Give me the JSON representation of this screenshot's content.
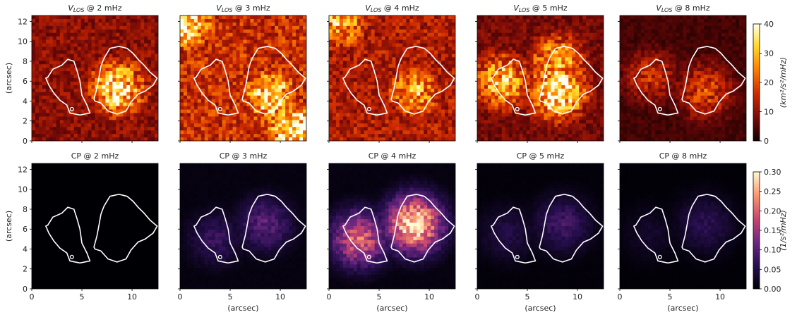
{
  "figure": {
    "rows": [
      {
        "quantity": "V_LOS",
        "titles": [
          {
            "main": "V",
            "sub": "LOS",
            "rest": " @ 2 mHz"
          },
          {
            "main": "V",
            "sub": "LOS",
            "rest": " @ 3 mHz"
          },
          {
            "main": "V",
            "sub": "LOS",
            "rest": " @ 4 mHz"
          },
          {
            "main": "V",
            "sub": "LOS",
            "rest": " @ 5 mHz"
          },
          {
            "main": "V",
            "sub": "LOS",
            "rest": " @ 8 mHz"
          }
        ],
        "colormap": "inferno-like (black-red-orange-yellow-white)",
        "colorbar": {
          "range": [
            0,
            40
          ],
          "ticks": [
            "0",
            "10",
            "20",
            "30",
            "40"
          ],
          "label": "(km²/s²/mHz)"
        }
      },
      {
        "quantity": "CP",
        "titles": [
          {
            "main": "CP @ 2 mHz"
          },
          {
            "main": "CP @ 3 mHz"
          },
          {
            "main": "CP @ 4 mHz"
          },
          {
            "main": "CP @ 5 mHz"
          },
          {
            "main": "CP @ 8 mHz"
          }
        ],
        "colormap": "magma-like (black-purple-orange-cream)",
        "colorbar": {
          "range": [
            0,
            0.3
          ],
          "ticks": [
            "0.00",
            "0.05",
            "0.10",
            "0.15",
            "0.20",
            "0.25",
            "0.30"
          ],
          "label": "(1/s²/mHz)"
        }
      }
    ],
    "axes": {
      "xlabel": "(arcsec)",
      "ylabel": "(arcsec)",
      "xticks": [
        "0",
        "5",
        "10"
      ],
      "yticks": [
        "0",
        "2",
        "4",
        "6",
        "8",
        "10",
        "12"
      ],
      "xlim": [
        0,
        12.6
      ],
      "ylim": [
        0,
        12.6
      ]
    },
    "contour_color": "#ffffff"
  },
  "chart_data": {
    "type": "heatmap",
    "xlabel": "(arcsec)",
    "ylabel": "(arcsec)",
    "xlim": [
      0,
      12.6
    ],
    "ylim": [
      0,
      12.6
    ],
    "panels": [
      {
        "row": "V_LOS",
        "frequency_mHz": 2,
        "bright_regions": [
          {
            "x": 8.5,
            "y": 5.3,
            "level": 35
          }
        ],
        "mean_level": 10
      },
      {
        "row": "V_LOS",
        "frequency_mHz": 3,
        "bright_regions": [
          {
            "x": 11.5,
            "y": 1.0,
            "level": 40
          },
          {
            "x": 0.5,
            "y": 12.0,
            "level": 38
          },
          {
            "x": 9.0,
            "y": 4.5,
            "level": 35
          }
        ],
        "mean_level": 16
      },
      {
        "row": "V_LOS",
        "frequency_mHz": 4,
        "bright_regions": [
          {
            "x": 1.0,
            "y": 12.0,
            "level": 30
          },
          {
            "x": 8.5,
            "y": 5.0,
            "level": 28
          }
        ],
        "mean_level": 13
      },
      {
        "row": "V_LOS",
        "frequency_mHz": 5,
        "bright_regions": [
          {
            "x": 8.0,
            "y": 5.0,
            "level": 38
          },
          {
            "x": 2.5,
            "y": 6.0,
            "level": 30
          },
          {
            "x": 8.0,
            "y": 8.0,
            "level": 28
          }
        ],
        "mean_level": 8
      },
      {
        "row": "V_LOS",
        "frequency_mHz": 8,
        "bright_regions": [
          {
            "x": 8.5,
            "y": 5.0,
            "level": 18
          },
          {
            "x": 3.0,
            "y": 6.5,
            "level": 15
          }
        ],
        "mean_level": 4
      },
      {
        "row": "CP",
        "frequency_mHz": 2,
        "bright_regions": [],
        "mean_level": 0.0
      },
      {
        "row": "CP",
        "frequency_mHz": 3,
        "bright_regions": [
          {
            "x": 8.5,
            "y": 6.5,
            "level": 0.1
          },
          {
            "x": 3.5,
            "y": 5.0,
            "level": 0.07
          }
        ],
        "mean_level": 0.01
      },
      {
        "row": "CP",
        "frequency_mHz": 4,
        "bright_regions": [
          {
            "x": 8.5,
            "y": 6.5,
            "level": 0.3
          },
          {
            "x": 3.0,
            "y": 5.0,
            "level": 0.2
          }
        ],
        "mean_level": 0.01
      },
      {
        "row": "CP",
        "frequency_mHz": 5,
        "bright_regions": [
          {
            "x": 8.5,
            "y": 6.5,
            "level": 0.08
          },
          {
            "x": 3.0,
            "y": 5.5,
            "level": 0.05
          }
        ],
        "mean_level": 0.005
      },
      {
        "row": "CP",
        "frequency_mHz": 8,
        "bright_regions": [
          {
            "x": 8.5,
            "y": 6.5,
            "level": 0.06
          },
          {
            "x": 3.0,
            "y": 5.5,
            "level": 0.03
          }
        ],
        "mean_level": 0.003
      }
    ]
  }
}
